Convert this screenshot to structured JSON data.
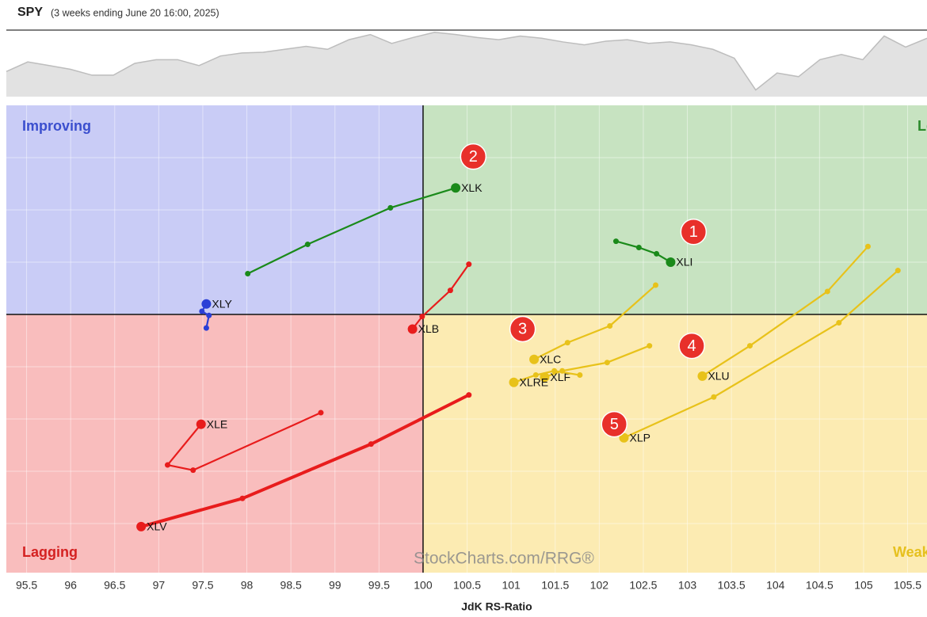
{
  "chart_data": [
    {
      "type": "rrg",
      "title": "SPY",
      "subtitle": "(3 weeks ending June 20 16:00, 2025)",
      "x_label": "JdK RS-Ratio",
      "watermark": "StockCharts.com/RRG®",
      "center": {
        "x": 100,
        "y": 100
      },
      "quadrants": [
        {
          "label": "Improving",
          "color": "#c9ccf6",
          "text_color": "#3b4fce"
        },
        {
          "label": "Leading",
          "color": "#c7e3c1",
          "text_color": "#2b8a2b"
        },
        {
          "label": "Lagging",
          "color": "#f9bdbd",
          "text_color": "#d42222"
        },
        {
          "label": "Weakening",
          "color": "#fcebb2",
          "text_color": "#e6c01e"
        }
      ],
      "xlim": [
        95.27,
        105.72
      ],
      "ylim": [
        97.53,
        102
      ],
      "xticks": [
        95.5,
        96,
        96.5,
        97,
        97.5,
        98,
        98.5,
        99,
        99.5,
        100,
        100.5,
        101,
        101.5,
        102,
        102.5,
        103,
        103.5,
        104,
        104.5,
        105,
        105.5
      ],
      "yticks": [
        98,
        98.5,
        99,
        99.5,
        100,
        100.5,
        101,
        101.5
      ],
      "grid": true,
      "series": [
        {
          "name": "XLK",
          "color": "#1a8a1a",
          "x": [
            98.01,
            98.69,
            99.63,
            100.37
          ],
          "values": [
            100.39,
            100.67,
            101.02,
            101.21
          ]
        },
        {
          "name": "XLI",
          "color": "#1a8a1a",
          "x": [
            102.19,
            102.45,
            102.65,
            102.81
          ],
          "values": [
            100.7,
            100.64,
            100.58,
            100.5
          ]
        },
        {
          "name": "XLY",
          "color": "#2a3fd6",
          "x": [
            97.54,
            97.57,
            97.49,
            97.54
          ],
          "values": [
            99.87,
            99.99,
            100.03,
            100.1
          ]
        },
        {
          "name": "XLB",
          "color": "#e81c1c",
          "x": [
            100.52,
            100.31,
            99.99,
            99.88
          ],
          "values": [
            100.48,
            100.23,
            99.98,
            99.86
          ]
        },
        {
          "name": "XLE",
          "color": "#e81c1c",
          "x": [
            98.84,
            97.39,
            97.1,
            97.48
          ],
          "values": [
            99.06,
            98.51,
            98.56,
            98.95
          ]
        },
        {
          "name": "XLV",
          "color": "#e81c1c",
          "line_width": 4,
          "x": [
            100.52,
            99.41,
            97.95,
            96.8
          ],
          "values": [
            99.23,
            98.76,
            98.24,
            97.97
          ]
        },
        {
          "name": "XLC",
          "color": "#e8c21a",
          "x": [
            102.64,
            102.12,
            101.64,
            101.26
          ],
          "values": [
            100.28,
            99.89,
            99.73,
            99.57
          ]
        },
        {
          "name": "XLF",
          "color": "#e8c21a",
          "x": [
            102.57,
            102.09,
            101.58,
            101.38
          ],
          "values": [
            99.7,
            99.54,
            99.46,
            99.4
          ]
        },
        {
          "name": "XLRE",
          "color": "#e8c21a",
          "x": [
            101.78,
            101.49,
            101.28,
            101.03
          ],
          "values": [
            99.42,
            99.46,
            99.42,
            99.35
          ]
        },
        {
          "name": "XLU",
          "color": "#e8c21a",
          "x": [
            105.05,
            104.59,
            103.71,
            103.17
          ],
          "values": [
            100.65,
            100.22,
            99.7,
            99.41
          ]
        },
        {
          "name": "XLP",
          "color": "#e8c21a",
          "x": [
            105.39,
            104.72,
            103.3,
            102.28
          ],
          "values": [
            100.42,
            99.92,
            99.21,
            98.82
          ]
        }
      ],
      "annotations": [
        {
          "label": "1",
          "x": 103.07,
          "y": 100.79
        },
        {
          "label": "2",
          "x": 100.57,
          "y": 101.51
        },
        {
          "label": "3",
          "x": 101.13,
          "y": 99.86
        },
        {
          "label": "4",
          "x": 103.05,
          "y": 99.7
        },
        {
          "label": "5",
          "x": 102.17,
          "y": 98.95
        }
      ]
    },
    {
      "type": "area",
      "color": "#e2e2e2",
      "line_color": "#bdbdbd",
      "ylim": [
        0,
        90
      ],
      "values": [
        34,
        47,
        42,
        37,
        29,
        29,
        45,
        50,
        50,
        42,
        55,
        59,
        60,
        64,
        68,
        64,
        77,
        84,
        72,
        80,
        87,
        84,
        80,
        77,
        82,
        79,
        74,
        70,
        75,
        77,
        72,
        74,
        70,
        64,
        52,
        9,
        32,
        27,
        50,
        57,
        50,
        82,
        67,
        79
      ]
    }
  ]
}
